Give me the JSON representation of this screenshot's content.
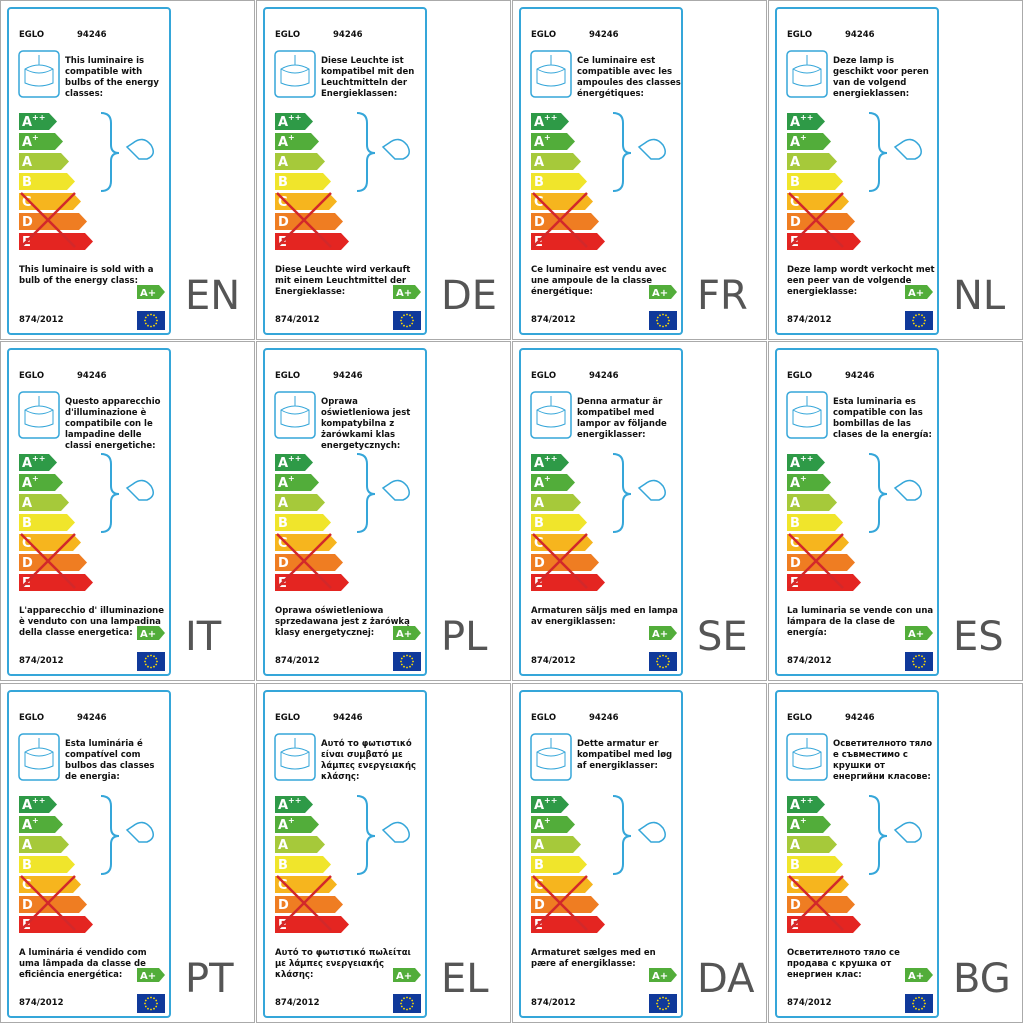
{
  "brand": "EGLO",
  "model": "94246",
  "regulation": "874/2012",
  "sold_class": "A+",
  "classes": [
    {
      "letter": "A",
      "sup": "++",
      "color": "#2e9a47"
    },
    {
      "letter": "A",
      "sup": "+",
      "color": "#52ad3a"
    },
    {
      "letter": "A",
      "color": "#a6c93a"
    },
    {
      "letter": "B",
      "color": "#f0e52b"
    },
    {
      "letter": "C",
      "color": "#f6b51e"
    },
    {
      "letter": "D",
      "color": "#ef7d22"
    },
    {
      "letter": "E",
      "color": "#e42521"
    }
  ],
  "labels": [
    {
      "lang": "EN",
      "compatible": "This luminaire is compatible with bulbs of the energy classes:",
      "sold": "This luminaire is sold with a bulb of the energy class:"
    },
    {
      "lang": "DE",
      "compatible": "Diese Leuchte ist kompatibel mit den Leuchtmitteln der Energieklassen:",
      "sold": "Diese Leuchte wird verkauft mit einem Leuchtmittel der Energieklasse:"
    },
    {
      "lang": "FR",
      "compatible": "Ce luminaire est compatible avec les ampoules des classes énergétiques:",
      "sold": "Ce luminaire est vendu avec une ampoule de la classe énergétique:"
    },
    {
      "lang": "NL",
      "compatible": "Deze lamp is geschikt voor peren van de volgend energieklassen:",
      "sold": "Deze lamp wordt verkocht met een peer van de volgende energieklasse:"
    },
    {
      "lang": "IT",
      "compatible": "Questo apparecchio d'illuminazione è compatibile con le lampadine delle classi energetiche:",
      "sold": "L'apparecchio d' illuminazione è venduto con una lampadina della classe energetica:"
    },
    {
      "lang": "PL",
      "compatible": "Oprawa oświetleniowa jest kompatybilna z żarówkami klas energetycznych:",
      "sold": "Oprawa oświetleniowa sprzedawana jest z żarówką klasy energetycznej:"
    },
    {
      "lang": "SE",
      "compatible": "Denna armatur är kompatibel med lampor av följande energiklasser:",
      "sold": "Armaturen säljs med en lampa av energiklassen:"
    },
    {
      "lang": "ES",
      "compatible": "Esta luminaria es compatible con las bombillas de las clases de la energía:",
      "sold": "La luminaria se vende con una lámpara de la clase de energía:"
    },
    {
      "lang": "PT",
      "compatible": "Esta luminária é compatível com bulbos das classes de energia:",
      "sold": "A luminária é vendido com uma lâmpada da classe de eficiência energética:"
    },
    {
      "lang": "EL",
      "compatible": "Αυτό το φωτιστικό είναι συμβατό με λάμπες ενεργειακής κλάσης:",
      "sold": "Αυτό το φωτιστικό πωλείται με λάμπες ενεργειακής κλάσης:"
    },
    {
      "lang": "DA",
      "compatible": "Dette armatur er kompatibel med løg af energiklasser:",
      "sold": "Armaturet sælges med en pære af energiklasse:"
    },
    {
      "lang": "BG",
      "compatible": "Осветителното тяло е съвместимо с крушки от енергийни класове:",
      "sold": "Осветителното тяло се продава с крушка от енергиен клас:"
    }
  ]
}
